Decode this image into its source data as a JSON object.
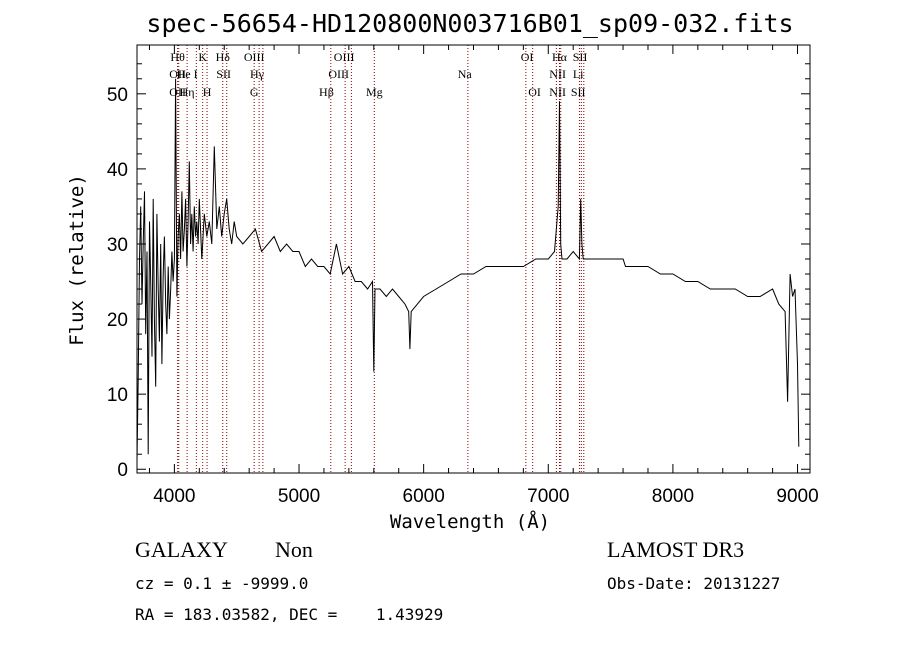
{
  "chart_data": {
    "type": "line",
    "title": "spec-56654-HD120800N003716B01_sp09-032.fits",
    "xlabel": "Wavelength (Å)",
    "ylabel": "Flux (relative)",
    "xlim": [
      3700,
      9100
    ],
    "ylim": [
      -0.5,
      56.5
    ],
    "x_ticks": [
      4000,
      5000,
      6000,
      7000,
      8000,
      9000
    ],
    "y_ticks": [
      0,
      10,
      20,
      30,
      40,
      50
    ],
    "grid": false,
    "series": [
      {
        "x": [
          3700,
          3710,
          3720,
          3730,
          3740,
          3750,
          3760,
          3770,
          3780,
          3790,
          3800,
          3810,
          3820,
          3830,
          3840,
          3850,
          3860,
          3870,
          3880,
          3890,
          3900,
          3910,
          3920,
          3930,
          3940,
          3950,
          3960,
          3970,
          3980,
          3990,
          4000,
          4010,
          4020,
          4030,
          4040,
          4050,
          4060,
          4070,
          4080,
          4090,
          4100,
          4110,
          4120,
          4130,
          4140,
          4150,
          4160,
          4170,
          4180,
          4190,
          4200,
          4220,
          4240,
          4260,
          4280,
          4300,
          4320,
          4340,
          4360,
          4380,
          4400,
          4420,
          4440,
          4460,
          4480,
          4500,
          4550,
          4600,
          4650,
          4700,
          4750,
          4800,
          4850,
          4900,
          4950,
          5000,
          5050,
          5100,
          5150,
          5200,
          5250,
          5300,
          5350,
          5400,
          5450,
          5500,
          5550,
          5590,
          5600,
          5610,
          5650,
          5700,
          5750,
          5800,
          5850,
          5880,
          5890,
          5900,
          5950,
          6000,
          6100,
          6200,
          6300,
          6400,
          6500,
          6600,
          6700,
          6800,
          6900,
          7000,
          7050,
          7080,
          7090,
          7100,
          7110,
          7120,
          7150,
          7200,
          7250,
          7260,
          7270,
          7280,
          7300,
          7350,
          7400,
          7500,
          7600,
          7620,
          7700,
          7800,
          7900,
          8000,
          8100,
          8200,
          8300,
          8400,
          8500,
          8600,
          8700,
          8800,
          8850,
          8900,
          8920,
          8940,
          8960,
          8980,
          9000,
          9010
        ],
        "y": [
          1.0,
          12.0,
          28.0,
          35.0,
          22.0,
          30.0,
          37.0,
          18.0,
          29.0,
          2.0,
          33.0,
          25.0,
          15.0,
          36.0,
          20.0,
          11.0,
          34.0,
          24.0,
          17.0,
          30.0,
          14.0,
          26.0,
          31.0,
          22.0,
          18.0,
          27.0,
          20.0,
          24.0,
          29.0,
          25.0,
          28.0,
          52.0,
          23.0,
          31.0,
          34.0,
          28.0,
          37.0,
          29.0,
          32.0,
          36.0,
          27.0,
          33.0,
          41.0,
          30.0,
          34.0,
          29.0,
          35.0,
          31.0,
          33.0,
          30.0,
          36.0,
          28.0,
          34.0,
          31.0,
          33.0,
          30.0,
          43.0,
          32.0,
          35.0,
          31.0,
          34.0,
          36.0,
          32.0,
          30.0,
          33.0,
          31.0,
          30.0,
          31.0,
          32.0,
          29.0,
          30.0,
          31.0,
          29.0,
          30.0,
          29.0,
          29.0,
          27.0,
          28.0,
          27.0,
          27.0,
          26.0,
          30.0,
          26.0,
          27.0,
          25.0,
          25.0,
          24.0,
          25.0,
          13.0,
          24.0,
          24.0,
          23.0,
          24.0,
          23.0,
          22.0,
          21.0,
          16.0,
          21.0,
          22.0,
          23.0,
          24.0,
          25.0,
          26.0,
          26.0,
          27.0,
          27.0,
          27.0,
          27.0,
          28.0,
          28.0,
          29.0,
          35.0,
          49.0,
          30.0,
          28.0,
          28.0,
          28.0,
          29.0,
          28.0,
          36.0,
          30.0,
          28.0,
          28.0,
          28.0,
          28.0,
          28.0,
          28.0,
          27.0,
          27.0,
          27.0,
          26.0,
          26.0,
          25.0,
          25.0,
          24.0,
          24.0,
          24.0,
          23.0,
          23.0,
          24.0,
          22.0,
          21.0,
          9.0,
          26.0,
          23.0,
          24.0,
          14.0,
          3.0
        ]
      }
    ],
    "line_markers": [
      {
        "x": 4026,
        "label": "Hθ",
        "row": 0
      },
      {
        "x": 4026,
        "label": "OII",
        "row": 1
      },
      {
        "x": 4026,
        "label": "OII",
        "row": 2
      },
      {
        "x": 4102,
        "label": "He I",
        "row": 1
      },
      {
        "x": 4102,
        "label": "Hη",
        "row": 2
      },
      {
        "x": 4227,
        "label": "K",
        "row": 0
      },
      {
        "x": 4262,
        "label": "H",
        "row": 2
      },
      {
        "x": 4388,
        "label": "Hδ",
        "row": 0
      },
      {
        "x": 4395,
        "label": "SII",
        "row": 1
      },
      {
        "x": 4640,
        "label": "OIII",
        "row": 0
      },
      {
        "x": 4663,
        "label": "Hγ",
        "row": 1
      },
      {
        "x": 4640,
        "label": "G",
        "row": 2
      },
      {
        "x": 5362,
        "label": "OIII",
        "row": 0
      },
      {
        "x": 5318,
        "label": "OIII",
        "row": 1
      },
      {
        "x": 5220,
        "label": "Hβ",
        "row": 2
      },
      {
        "x": 5604,
        "label": "Mg",
        "row": 2
      },
      {
        "x": 6330,
        "label": "Na",
        "row": 1
      },
      {
        "x": 6830,
        "label": "OI",
        "row": 0
      },
      {
        "x": 6890,
        "label": "OI",
        "row": 2
      },
      {
        "x": 7090,
        "label": "Hα",
        "row": 0
      },
      {
        "x": 7255,
        "label": "SII",
        "row": 0
      },
      {
        "x": 7075,
        "label": "NII",
        "row": 1
      },
      {
        "x": 7240,
        "label": "Li",
        "row": 1
      },
      {
        "x": 7075,
        "label": "NII",
        "row": 2
      },
      {
        "x": 7240,
        "label": "SII",
        "row": 2
      }
    ],
    "marker_lines_x": [
      4026,
      4035,
      4102,
      4176,
      4227,
      4262,
      4388,
      4420,
      4640,
      4680,
      4710,
      5255,
      5370,
      5420,
      5604,
      6355,
      6820,
      6875,
      7065,
      7090,
      7100,
      7250,
      7265,
      7285
    ]
  },
  "info": {
    "class": "GALAXY",
    "subclass": "Non",
    "survey": "LAMOST DR3",
    "cz": "cz = 0.1 ± -9999.0",
    "obs_date": "Obs-Date: 20131227",
    "radec": "RA = 183.03582, DEC =    1.43929"
  },
  "colors": {
    "marker": "#8b0000",
    "spectrum": "#000000"
  }
}
